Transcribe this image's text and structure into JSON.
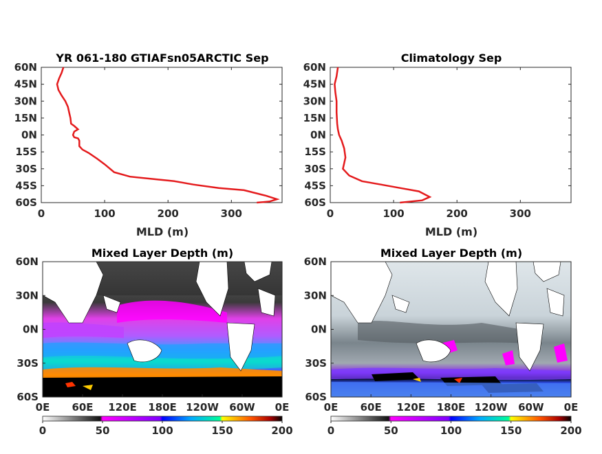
{
  "colors": {
    "profile_line": "#e41a1c",
    "colorbar_stops": [
      "#ffffff",
      "#111111",
      "#ff00ff",
      "#0000ff",
      "#00ffff",
      "#ffff00",
      "#ff0000",
      "#000000"
    ]
  },
  "chart_data": [
    {
      "type": "line",
      "title": "YR 061-180 GTIAFsn05ARCTIC Sep",
      "xlabel": "MLD (m)",
      "ylabel": "",
      "xlim": [
        0,
        380
      ],
      "ylim": [
        -60,
        60
      ],
      "xticks": [
        0,
        100,
        200,
        300
      ],
      "yticks": [
        -60,
        -45,
        -30,
        -15,
        0,
        15,
        30,
        45,
        60
      ],
      "yticklabels": [
        "60S",
        "45S",
        "30S",
        "15S",
        "0N",
        "15N",
        "30N",
        "45N",
        "60N"
      ],
      "series": [
        {
          "values": [
            [
              35,
              60
            ],
            [
              32,
              55
            ],
            [
              28,
              50
            ],
            [
              25,
              45
            ],
            [
              27,
              40
            ],
            [
              32,
              35
            ],
            [
              38,
              30
            ],
            [
              42,
              25
            ],
            [
              44,
              20
            ],
            [
              46,
              15
            ],
            [
              47,
              10
            ],
            [
              52,
              8
            ],
            [
              58,
              5
            ],
            [
              52,
              3
            ],
            [
              50,
              0
            ],
            [
              52,
              -2
            ],
            [
              58,
              -3
            ],
            [
              60,
              -5
            ],
            [
              60,
              -10
            ],
            [
              65,
              -13
            ],
            [
              75,
              -16
            ],
            [
              88,
              -21
            ],
            [
              100,
              -26
            ],
            [
              115,
              -33
            ],
            [
              140,
              -37
            ],
            [
              175,
              -39
            ],
            [
              210,
              -41
            ],
            [
              240,
              -44
            ],
            [
              280,
              -47
            ],
            [
              320,
              -49
            ],
            [
              355,
              -54
            ],
            [
              372,
              -57
            ],
            [
              360,
              -59
            ],
            [
              340,
              -60
            ]
          ]
        }
      ]
    },
    {
      "type": "line",
      "title": "Climatology Sep",
      "xlabel": "MLD (m)",
      "ylabel": "",
      "xlim": [
        0,
        380
      ],
      "ylim": [
        -60,
        60
      ],
      "xticks": [
        0,
        100,
        200,
        300
      ],
      "yticks": [
        -60,
        -45,
        -30,
        -15,
        0,
        15,
        30,
        45,
        60
      ],
      "yticklabels": [
        "60S",
        "45S",
        "30S",
        "15S",
        "0N",
        "15N",
        "30N",
        "45N",
        "60N"
      ],
      "series": [
        {
          "values": [
            [
              12,
              60
            ],
            [
              10,
              52
            ],
            [
              7,
              45
            ],
            [
              8,
              38
            ],
            [
              10,
              30
            ],
            [
              10,
              20
            ],
            [
              11,
              10
            ],
            [
              12,
              5
            ],
            [
              14,
              0
            ],
            [
              18,
              -5
            ],
            [
              22,
              -12
            ],
            [
              24,
              -20
            ],
            [
              22,
              -25
            ],
            [
              20,
              -30
            ],
            [
              30,
              -36
            ],
            [
              50,
              -41
            ],
            [
              80,
              -44
            ],
            [
              110,
              -47
            ],
            [
              140,
              -50
            ],
            [
              157,
              -55
            ],
            [
              145,
              -58
            ],
            [
              110,
              -60
            ]
          ]
        }
      ]
    },
    {
      "type": "heatmap",
      "title": "Mixed Layer Depth (m)",
      "xlim": [
        0,
        360
      ],
      "ylim": [
        -60,
        60
      ],
      "xticklabels": [
        "0E",
        "60E",
        "120E",
        "180E",
        "120W",
        "60W",
        "0E"
      ],
      "yticklabels": [
        "60S",
        "30S",
        "0N",
        "30N",
        "60N"
      ],
      "colorbar": {
        "min": 0,
        "max": 200,
        "ticks": [
          "0",
          "50",
          "100",
          "150",
          "200"
        ]
      }
    },
    {
      "type": "heatmap",
      "title": "Mixed Layer Depth (m)",
      "xlim": [
        0,
        360
      ],
      "ylim": [
        -60,
        60
      ],
      "xticklabels": [
        "0E",
        "60E",
        "120E",
        "180E",
        "120W",
        "60W",
        "0E"
      ],
      "yticklabels": [
        "60S",
        "30S",
        "0N",
        "30N",
        "60N"
      ],
      "colorbar": {
        "min": 0,
        "max": 200,
        "ticks": [
          "0",
          "50",
          "100",
          "150",
          "200"
        ]
      }
    }
  ]
}
